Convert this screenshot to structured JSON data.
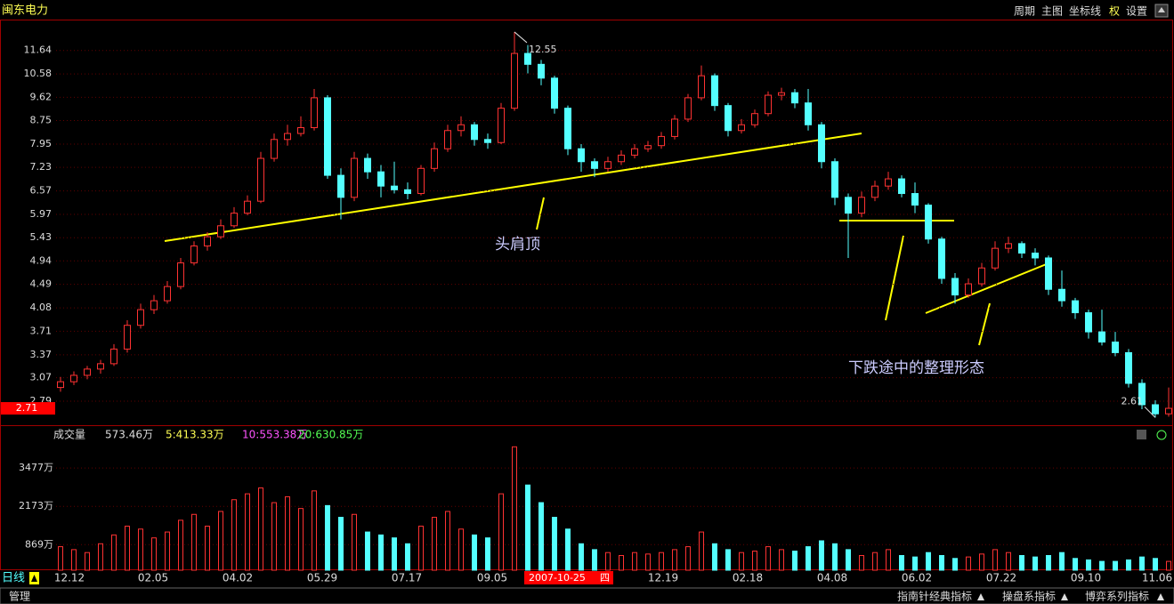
{
  "header": {
    "stock_name": "闽东电力",
    "menu": [
      "周期",
      "主图",
      "坐标线",
      "权",
      "设置"
    ]
  },
  "price_chart": {
    "type": "candlestick",
    "log_scale": true,
    "ylim": [
      2.53,
      13.2
    ],
    "yticks": [
      11.64,
      10.58,
      9.62,
      8.75,
      7.95,
      7.23,
      6.57,
      5.97,
      5.43,
      4.94,
      4.49,
      4.08,
      3.71,
      3.37,
      3.07,
      2.79
    ],
    "up_color": "#ff3232",
    "down_color": "#54ffff",
    "grid": true,
    "pattern_labels": [
      "头肩顶",
      "下跌途中的整理形态"
    ],
    "candles": [
      [
        2.95,
        3.08,
        2.9,
        3.02
      ],
      [
        3.02,
        3.15,
        2.98,
        3.1
      ],
      [
        3.1,
        3.22,
        3.05,
        3.18
      ],
      [
        3.18,
        3.3,
        3.12,
        3.25
      ],
      [
        3.25,
        3.52,
        3.22,
        3.45
      ],
      [
        3.45,
        3.88,
        3.4,
        3.8
      ],
      [
        3.8,
        4.15,
        3.75,
        4.05
      ],
      [
        4.05,
        4.3,
        3.98,
        4.2
      ],
      [
        4.2,
        4.55,
        4.15,
        4.45
      ],
      [
        4.45,
        5,
        4.4,
        4.9
      ],
      [
        4.9,
        5.35,
        4.85,
        5.25
      ],
      [
        5.25,
        5.55,
        5.15,
        5.45
      ],
      [
        5.45,
        5.85,
        5.4,
        5.7
      ],
      [
        5.7,
        6.15,
        5.65,
        6
      ],
      [
        6,
        6.45,
        5.95,
        6.3
      ],
      [
        6.3,
        7.7,
        6.25,
        7.5
      ],
      [
        7.5,
        8.3,
        7.4,
        8.1
      ],
      [
        8.1,
        8.6,
        7.9,
        8.3
      ],
      [
        8.3,
        8.9,
        8.2,
        8.5
      ],
      [
        8.5,
        9.95,
        8.4,
        9.6
      ],
      [
        9.6,
        9.7,
        6.9,
        7
      ],
      [
        7,
        7.2,
        5.85,
        6.4
      ],
      [
        6.4,
        7.7,
        6.3,
        7.5
      ],
      [
        7.5,
        7.65,
        6.9,
        7.1
      ],
      [
        7.1,
        7.3,
        6.4,
        6.7
      ],
      [
        6.7,
        7.4,
        6.5,
        6.6
      ],
      [
        6.6,
        6.8,
        6.35,
        6.5
      ],
      [
        6.5,
        7.3,
        6.45,
        7.2
      ],
      [
        7.2,
        8,
        7.1,
        7.8
      ],
      [
        7.8,
        8.6,
        7.7,
        8.4
      ],
      [
        8.4,
        8.9,
        8.2,
        8.6
      ],
      [
        8.6,
        8.7,
        7.9,
        8.1
      ],
      [
        8.1,
        8.3,
        7.8,
        8
      ],
      [
        8,
        9.4,
        7.95,
        9.2
      ],
      [
        9.2,
        12.55,
        9.1,
        11.5
      ],
      [
        11.5,
        11.9,
        10.6,
        11
      ],
      [
        11,
        11.2,
        10.1,
        10.4
      ],
      [
        10.4,
        10.5,
        9,
        9.2
      ],
      [
        9.2,
        9.3,
        7.6,
        7.8
      ],
      [
        7.8,
        7.95,
        7.1,
        7.4
      ],
      [
        7.4,
        7.5,
        6.95,
        7.2
      ],
      [
        7.2,
        7.55,
        7.1,
        7.4
      ],
      [
        7.4,
        7.75,
        7.3,
        7.6
      ],
      [
        7.6,
        7.95,
        7.5,
        7.8
      ],
      [
        7.8,
        8.05,
        7.7,
        7.9
      ],
      [
        7.9,
        8.35,
        7.8,
        8.2
      ],
      [
        8.2,
        8.95,
        8.1,
        8.8
      ],
      [
        8.8,
        9.75,
        8.7,
        9.6
      ],
      [
        9.6,
        10.95,
        9.5,
        10.5
      ],
      [
        10.5,
        10.6,
        9.1,
        9.3
      ],
      [
        9.3,
        9.4,
        8.2,
        8.4
      ],
      [
        8.4,
        8.8,
        8.3,
        8.6
      ],
      [
        8.6,
        9.15,
        8.5,
        9
      ],
      [
        9,
        9.85,
        8.9,
        9.7
      ],
      [
        9.7,
        10,
        9.5,
        9.8
      ],
      [
        9.8,
        9.95,
        9.2,
        9.4
      ],
      [
        9.4,
        9.95,
        8.4,
        8.6
      ],
      [
        8.6,
        8.7,
        7.2,
        7.4
      ],
      [
        7.4,
        7.5,
        6.2,
        6.4
      ],
      [
        6.4,
        6.5,
        5,
        6
      ],
      [
        6,
        6.55,
        5.9,
        6.4
      ],
      [
        6.4,
        6.85,
        6.3,
        6.7
      ],
      [
        6.7,
        7.1,
        6.6,
        6.9
      ],
      [
        6.9,
        7,
        6.4,
        6.5
      ],
      [
        6.5,
        6.8,
        6,
        6.2
      ],
      [
        6.2,
        6.25,
        5.3,
        5.4
      ],
      [
        5.4,
        5.45,
        4.5,
        4.6
      ],
      [
        4.6,
        4.7,
        4.15,
        4.3
      ],
      [
        4.3,
        4.6,
        4.25,
        4.5
      ],
      [
        4.5,
        4.9,
        4.45,
        4.8
      ],
      [
        4.8,
        5.35,
        4.75,
        5.2
      ],
      [
        5.2,
        5.45,
        5.1,
        5.3
      ],
      [
        5.3,
        5.35,
        5,
        5.1
      ],
      [
        5.1,
        5.2,
        4.85,
        5
      ],
      [
        5,
        5.05,
        4.3,
        4.4
      ],
      [
        4.4,
        4.75,
        4.1,
        4.2
      ],
      [
        4.2,
        4.25,
        3.9,
        4
      ],
      [
        4,
        4.05,
        3.6,
        3.7
      ],
      [
        3.7,
        4.05,
        3.5,
        3.55
      ],
      [
        3.55,
        3.7,
        3.35,
        3.4
      ],
      [
        3.4,
        3.45,
        2.95,
        3
      ],
      [
        3,
        3.05,
        2.7,
        2.75
      ],
      [
        2.75,
        2.8,
        2.61,
        2.65
      ],
      [
        2.65,
        2.95,
        2.62,
        2.71
      ]
    ]
  },
  "volume_chart": {
    "type": "bar",
    "title": "成交量",
    "legend": [
      "573.46万",
      "5:413.33万",
      "10:553.38万",
      "20:630.85万"
    ],
    "legend_colors": [
      "#dddddd",
      "#ffff54",
      "#ff54ff",
      "#54ff54"
    ],
    "ylim": [
      0,
      4270
    ],
    "yticks": [
      {
        "value": 3477,
        "label": "3477万"
      },
      {
        "value": 2173,
        "label": "2173万"
      },
      {
        "value": 869,
        "label": "869万"
      }
    ],
    "values": [
      800,
      700,
      600,
      900,
      1200,
      1500,
      1400,
      1100,
      1300,
      1700,
      1900,
      1500,
      2000,
      2400,
      2600,
      2800,
      2300,
      2500,
      2100,
      2700,
      2200,
      1800,
      1900,
      1300,
      1200,
      1100,
      900,
      1500,
      1800,
      2000,
      1400,
      1200,
      1100,
      2600,
      4200,
      2900,
      2300,
      1800,
      1400,
      900,
      700,
      600,
      500,
      600,
      550,
      600,
      700,
      800,
      1300,
      900,
      700,
      600,
      650,
      800,
      700,
      650,
      800,
      1000,
      900,
      700,
      500,
      600,
      700,
      500,
      450,
      600,
      500,
      400,
      450,
      550,
      700,
      600,
      500,
      450,
      500,
      600,
      400,
      350,
      300,
      300,
      350,
      450,
      400,
      300
    ]
  },
  "x_axis": {
    "labels": [
      "12.12",
      "02.05",
      "04.02",
      "05.29",
      "07.17",
      "09.05",
      "12.19",
      "02.18",
      "04.08",
      "06.02",
      "07.22",
      "09.10",
      "11.06"
    ],
    "cursor_date": "2007-10-25",
    "cursor_weekday": "四"
  },
  "footer": {
    "period": "日线",
    "left_tab": "管理",
    "right_tabs": [
      "指南针经典指标",
      "操盘系指标",
      "博弈系列指标"
    ]
  }
}
